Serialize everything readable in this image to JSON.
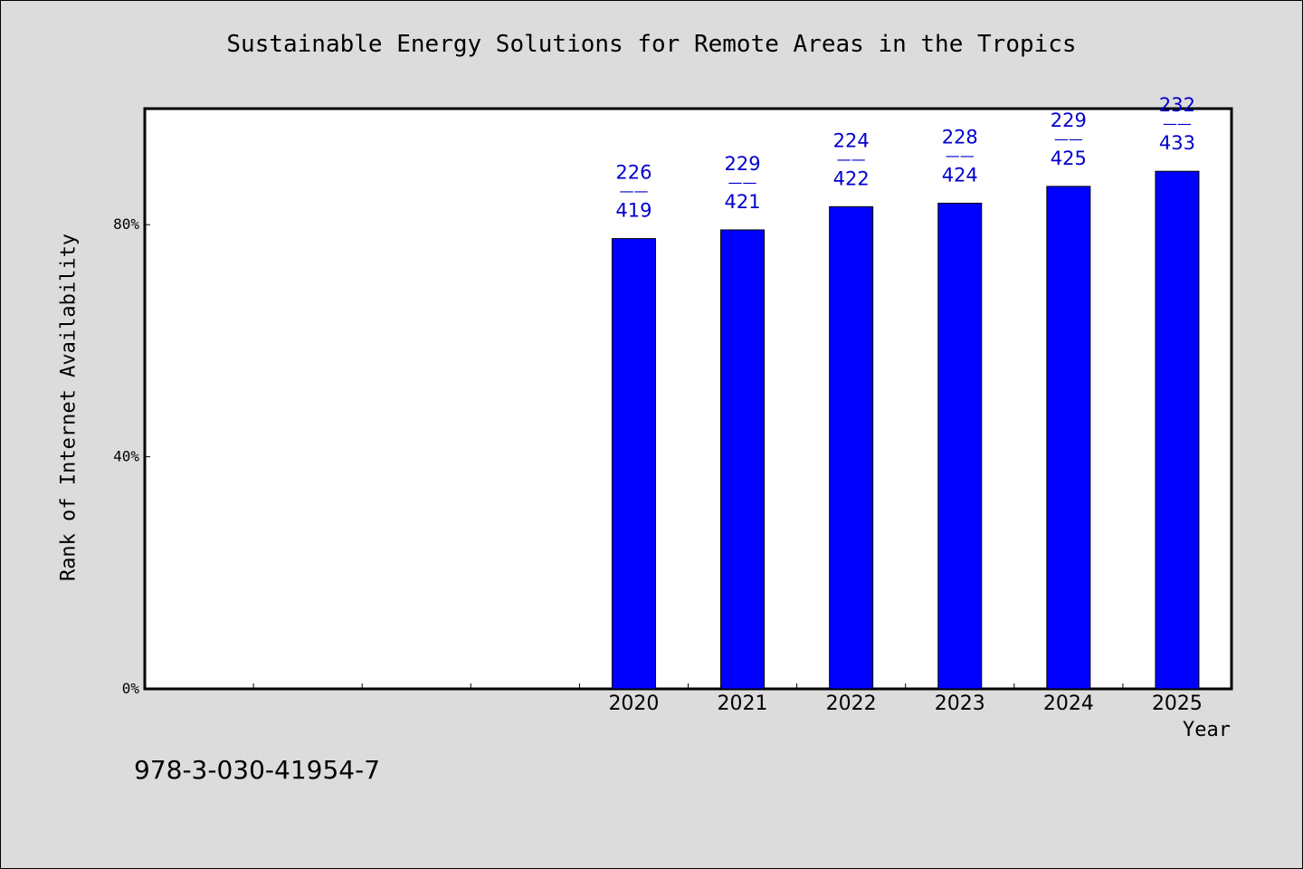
{
  "chart_data": {
    "type": "bar",
    "title": "Sustainable Energy Solutions for Remote Areas in the Tropics",
    "xlabel": "Year",
    "ylabel": "Rank of Internet Availability",
    "categories": [
      "",
      "",
      "",
      "",
      "2020",
      "2021",
      "2022",
      "2023",
      "2024",
      "2025"
    ],
    "values": [
      null,
      null,
      null,
      null,
      77.6,
      79.1,
      83.1,
      83.7,
      86.6,
      89.2
    ],
    "labels_top": [
      "",
      "",
      "",
      "",
      "226",
      "229",
      "224",
      "228",
      "229",
      "232"
    ],
    "labels_bottom": [
      "",
      "",
      "",
      "",
      "419",
      "421",
      "422",
      "424",
      "425",
      "433"
    ],
    "label_separator": "——",
    "ylim": [
      0,
      100
    ],
    "yticks": [
      0,
      40,
      80
    ],
    "ytick_labels": [
      "0%",
      "40%",
      "80%"
    ],
    "grid": false,
    "colors": {
      "bar": "#0000ff",
      "label": "#0000cc",
      "background": "#dcdcdc",
      "plot": "#ffffff"
    }
  },
  "footer": {
    "isbn": "978-3-030-41954-7"
  }
}
